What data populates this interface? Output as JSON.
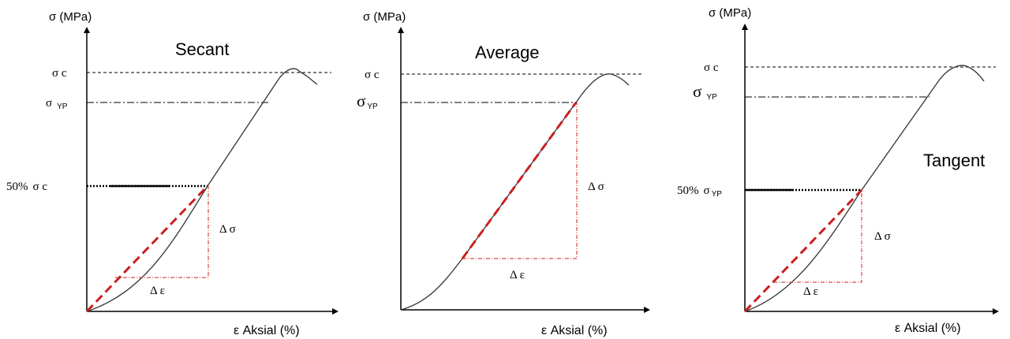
{
  "panels": [
    {
      "id": "secant",
      "y_label": "σ (MPa)",
      "x_label": "ε Aksial (%)",
      "title": "Secant",
      "level_sigma_c": "σ c",
      "level_yp_sigma": "σ",
      "level_yp_sub": "YP",
      "level_half_pct": "50%",
      "level_half_sym": "σ c",
      "delta_sigma": "Δ σ",
      "delta_eps": "Δ ε"
    },
    {
      "id": "average",
      "y_label": "σ (MPa)",
      "x_label": "ε Aksial (%)",
      "title": "Average",
      "level_sigma_c": "σ c",
      "level_yp_sigma": "σ",
      "level_yp_sub": "YP",
      "delta_sigma": "Δ σ",
      "delta_eps": "Δ ε"
    },
    {
      "id": "tangent",
      "y_label": "σ (MPa)",
      "x_label": "ε Aksial (%)",
      "title": "Tangent",
      "level_sigma_c": "σ c",
      "level_yp_sigma": "σ",
      "level_yp_sub": "YP",
      "level_half_pct": "50%",
      "level_half_sym": "σ",
      "level_half_sub": "YP",
      "delta_sigma": "Δ σ",
      "delta_eps": "Δ ε"
    }
  ],
  "colors": {
    "axis": "#000000",
    "curve": "#333333",
    "modulus_line": "#cc1f1f",
    "triangle": "#cc1f1f"
  }
}
